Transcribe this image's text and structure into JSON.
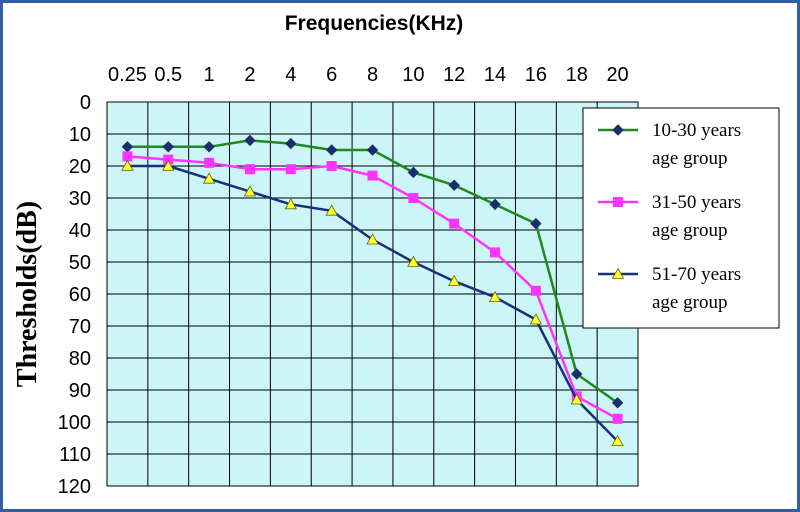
{
  "chart_data": {
    "type": "line",
    "xlabel": "Frequencies(KHz)",
    "ylabel": "Thresholds(dB)",
    "x": [
      "0.25",
      "0.5",
      "1",
      "2",
      "4",
      "6",
      "8",
      "10",
      "12",
      "14",
      "16",
      "18",
      "20"
    ],
    "ylim": [
      0,
      120
    ],
    "y_reversed": true,
    "y_ticks": [
      "0",
      "10",
      "20",
      "30",
      "40",
      "50",
      "60",
      "70",
      "80",
      "90",
      "100",
      "110",
      "120"
    ],
    "grid": true,
    "plot_background": "#ccf5f7",
    "legend_position": "right",
    "series": [
      {
        "name": "10-30 years age group",
        "legend_lines": [
          "10-30 years",
          "age group"
        ],
        "values": [
          14,
          14,
          14,
          12,
          13,
          15,
          15,
          22,
          26,
          32,
          38,
          85,
          94
        ],
        "color": "#1f8a1f",
        "marker": "diamond",
        "marker_color": "#1a2e6e"
      },
      {
        "name": "31-50 years age group",
        "legend_lines": [
          "31-50 years",
          "age group"
        ],
        "values": [
          17,
          18,
          19,
          21,
          21,
          20,
          23,
          30,
          38,
          47,
          59,
          92,
          99
        ],
        "color": "#ff33ff",
        "marker": "square",
        "marker_color": "#ff33ff"
      },
      {
        "name": "51-70 years age group",
        "legend_lines": [
          "51-70 years",
          "age group"
        ],
        "values": [
          20,
          20,
          24,
          28,
          32,
          34,
          43,
          50,
          56,
          61,
          68,
          93,
          106
        ],
        "color": "#1a2e7a",
        "marker": "triangle",
        "marker_color": "#ffff33"
      }
    ]
  }
}
